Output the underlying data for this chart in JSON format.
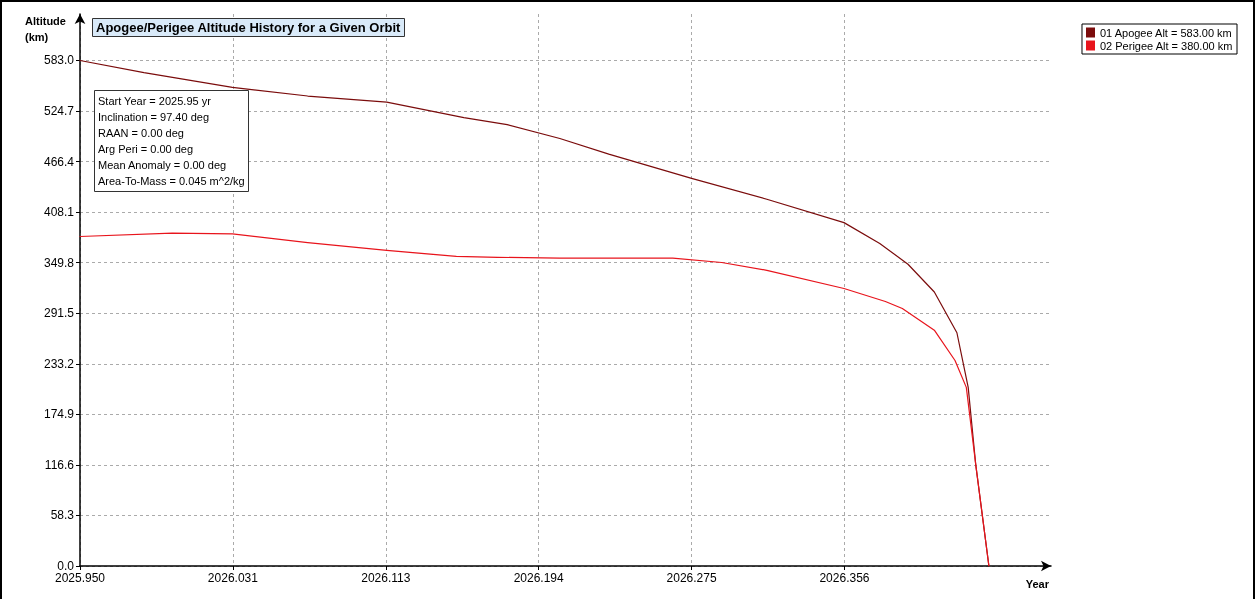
{
  "chart_data": {
    "type": "line",
    "title": "Apogee/Perigee Altitude History for a Given Orbit",
    "xlabel": "Year",
    "ylabel": "Altitude (km)",
    "annotations": [
      "Start Year = 2025.95 yr",
      "Inclination = 97.40 deg",
      "RAAN = 0.00 deg",
      "Arg Peri = 0.00 deg",
      "Mean Anomaly = 0.00 deg",
      "Area-To-Mass = 0.045 m^2/kg"
    ],
    "series": [
      {
        "name": "01 Apogee Alt = 583.00 km",
        "color": "#7b0c0c",
        "x": [
          2025.95,
          2025.984,
          2026.031,
          2026.071,
          2026.113,
          2026.154,
          2026.177,
          2026.205,
          2026.231,
          2026.275,
          2026.315,
          2026.356,
          2026.375,
          2026.39,
          2026.404,
          2026.416,
          2026.422,
          2026.426,
          2026.433
        ],
        "values": [
          583,
          569,
          552,
          542,
          535,
          517,
          509,
          493,
          475,
          447,
          423,
          396,
          372,
          348,
          316,
          269,
          206,
          117,
          0
        ]
      },
      {
        "name": "02 Perigee Alt = 380.00 km",
        "color": "#e8141c",
        "x": [
          2025.95,
          2025.999,
          2026.031,
          2026.071,
          2026.113,
          2026.15,
          2026.172,
          2026.205,
          2026.265,
          2026.291,
          2026.315,
          2026.356,
          2026.378,
          2026.387,
          2026.404,
          2026.415,
          2026.421,
          2026.426,
          2026.433
        ],
        "values": [
          380,
          384,
          383,
          373,
          364,
          357,
          356,
          355,
          355,
          350,
          341,
          320,
          305,
          297,
          272,
          237,
          206,
          117,
          0
        ]
      }
    ],
    "xlim": [
      2025.95,
      2026.466
    ],
    "ylim": [
      0,
      636.6
    ],
    "xticks": [
      {
        "value": 2025.95,
        "label": "2025.950"
      },
      {
        "value": 2026.03125,
        "label": "2026.031"
      },
      {
        "value": 2026.1125,
        "label": "2026.113"
      },
      {
        "value": 2026.19375,
        "label": "2026.194"
      },
      {
        "value": 2026.275,
        "label": "2026.275"
      },
      {
        "value": 2026.35625,
        "label": "2026.356"
      }
    ],
    "yticks": [
      {
        "value": 0,
        "label": "0.0"
      },
      58.3,
      116.6,
      174.9,
      233.2,
      291.5,
      349.8,
      408.1,
      466.4,
      524.7,
      {
        "value": 583,
        "label": "583.0"
      }
    ],
    "grid": true,
    "legend": "top right",
    "marker": "none",
    "line_style": "solid"
  }
}
